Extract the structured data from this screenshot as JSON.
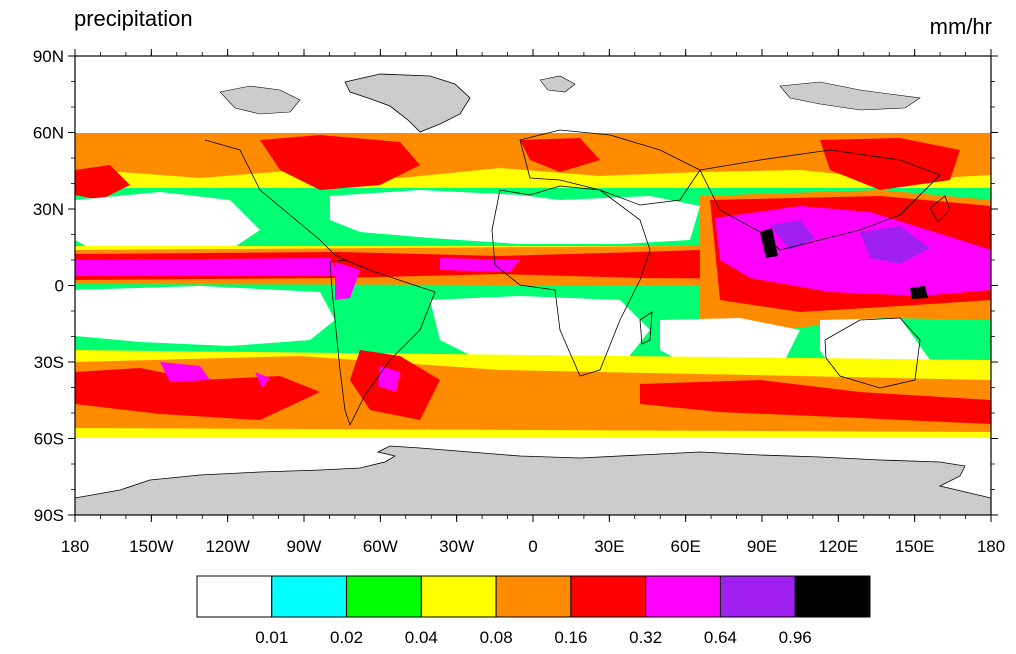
{
  "title": "precipitation",
  "units": "mm/hr",
  "latitude_labels": [
    "90N",
    "60N",
    "30N",
    "0",
    "30S",
    "60S",
    "90S"
  ],
  "longitude_labels": [
    "180",
    "150W",
    "120W",
    "90W",
    "60W",
    "30W",
    "0",
    "30E",
    "60E",
    "90E",
    "120E",
    "150E",
    "180"
  ],
  "colorbar": {
    "colors": [
      "#ffffff",
      "#00ffff",
      "#00ff00",
      "#ffff00",
      "#ff8c00",
      "#ff0000",
      "#ff00ff",
      "#a020f0",
      "#000000"
    ],
    "labels": [
      "0.01",
      "0.02",
      "0.04",
      "0.08",
      "0.16",
      "0.32",
      "0.64",
      "0.96"
    ]
  },
  "map": {
    "projection": "cylindrical equidistant",
    "data_extent_lat": [
      -60,
      60
    ],
    "land_mask_color": "#cccccc"
  }
}
